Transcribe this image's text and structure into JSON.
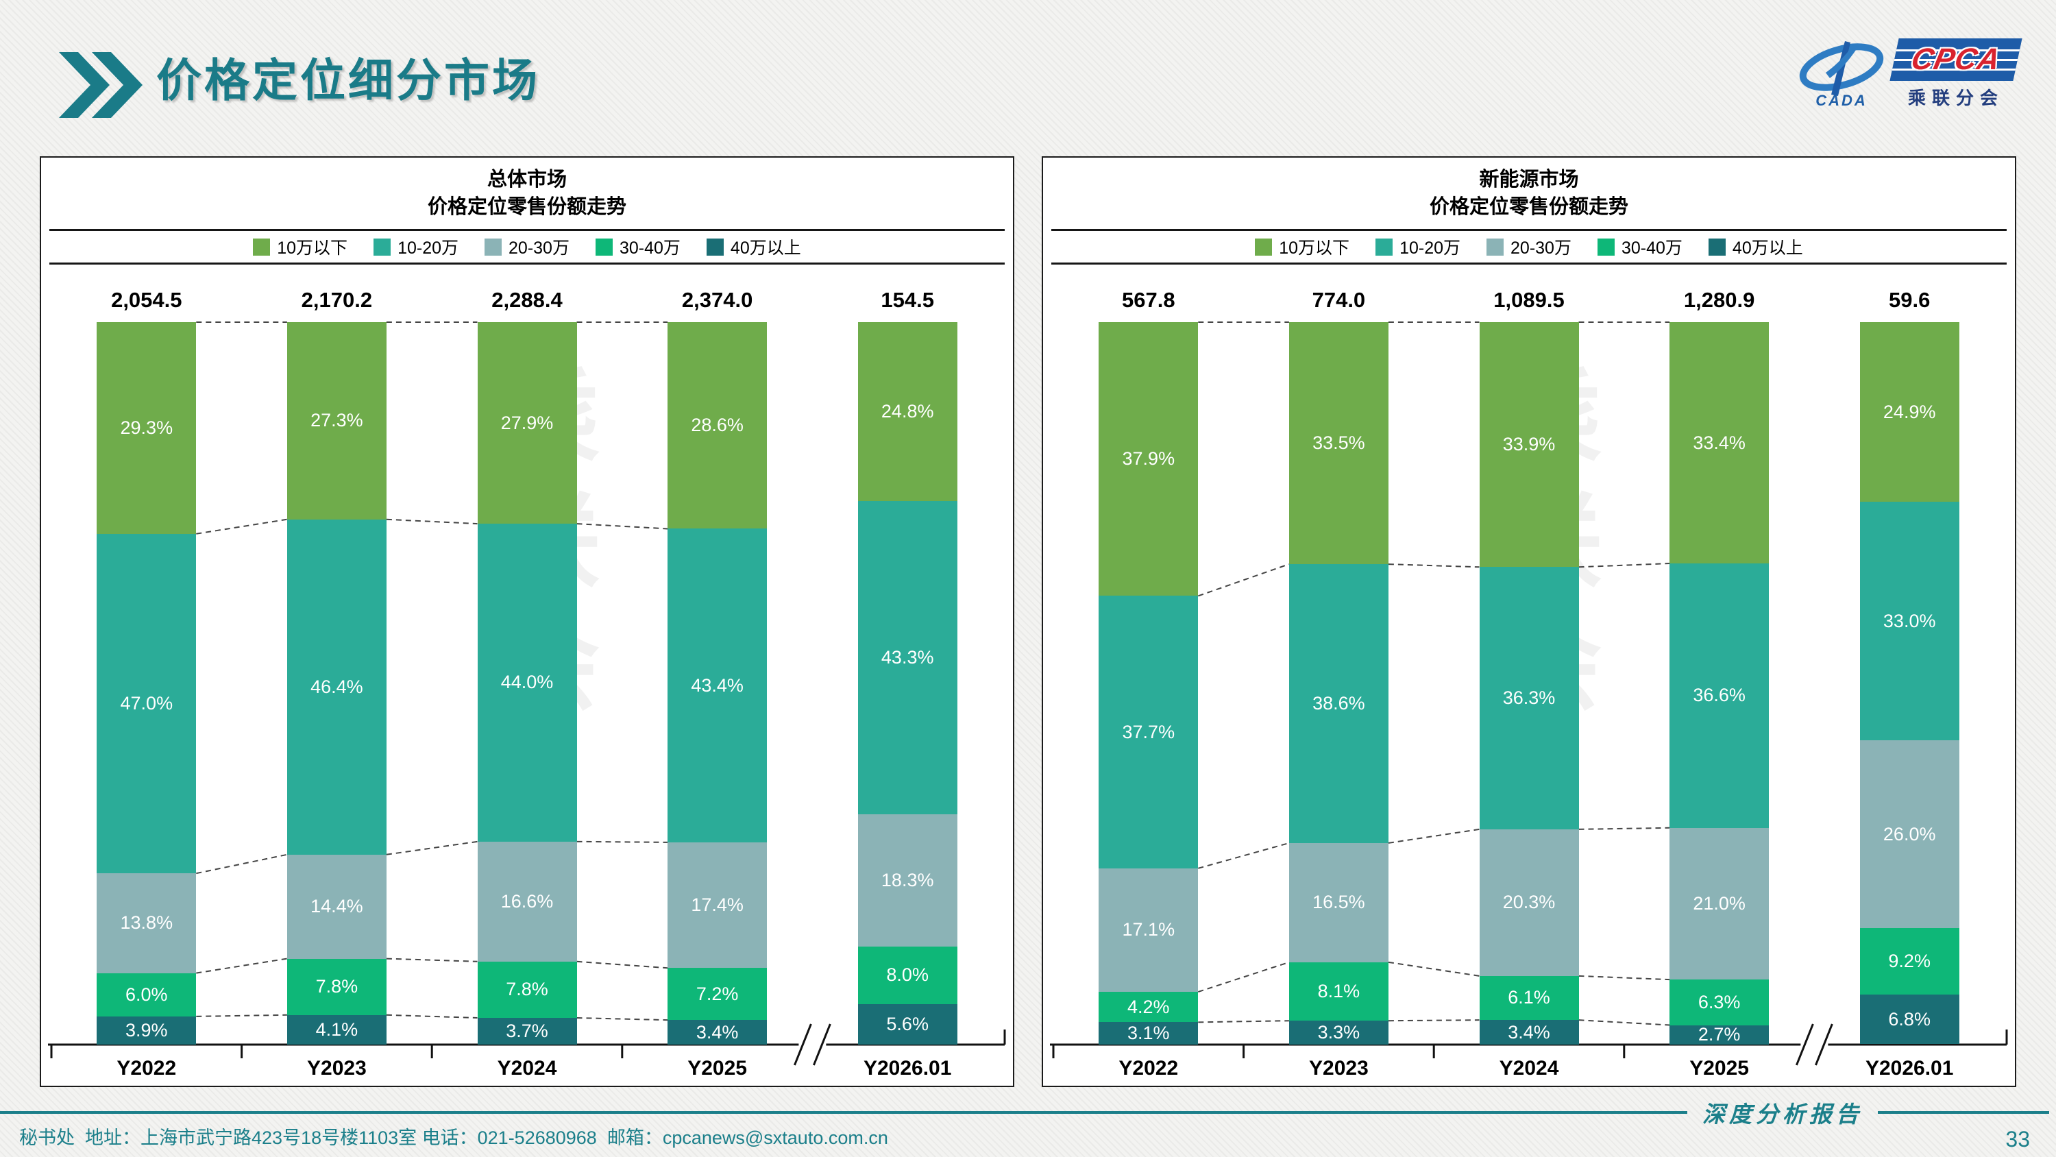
{
  "page": {
    "title": "价格定位细分市场",
    "watermark": "乘联会",
    "footer_left": "秘书处  地址：上海市武宁路423号18号楼1103室 电话：021-52680968  邮箱：cpcanews@sxtauto.com.cn",
    "footer_right": "深度分析报告",
    "page_number": "33"
  },
  "logo": {
    "cada": "CADA",
    "cpca": "CPCA",
    "sub": "乘联分会"
  },
  "legend": [
    {
      "label": "10万以下",
      "color": "#6FAC4B"
    },
    {
      "label": "10-20万",
      "color": "#2BAC98"
    },
    {
      "label": "20-30万",
      "color": "#8BB3B6"
    },
    {
      "label": "30-40万",
      "color": "#0EB778"
    },
    {
      "label": "40万以上",
      "color": "#1A6E75"
    }
  ],
  "chart_data": [
    {
      "type": "bar",
      "stacked": true,
      "title": "总体市场",
      "subtitle": "价格定位零售份额走势",
      "unit": "%",
      "categories": [
        "Y2022",
        "Y2023",
        "Y2024",
        "Y2025",
        "Y2026.01"
      ],
      "totals": [
        "2,054.5",
        "2,170.2",
        "2,288.4",
        "2,374.0",
        "154.5"
      ],
      "axis_break_after_index": 3,
      "series": [
        {
          "name": "40万以上",
          "color": "#1A6E75",
          "values": [
            3.9,
            4.1,
            3.7,
            3.4,
            5.6
          ]
        },
        {
          "name": "30-40万",
          "color": "#0EB778",
          "values": [
            6.0,
            7.8,
            7.8,
            7.2,
            8.0
          ]
        },
        {
          "name": "20-30万",
          "color": "#8BB3B6",
          "values": [
            13.8,
            14.4,
            16.6,
            17.4,
            18.3
          ]
        },
        {
          "name": "10-20万",
          "color": "#2BAC98",
          "values": [
            47.0,
            46.4,
            44.0,
            43.4,
            43.3
          ]
        },
        {
          "name": "10万以下",
          "color": "#6FAC4B",
          "values": [
            29.3,
            27.3,
            27.9,
            28.6,
            24.8
          ]
        }
      ]
    },
    {
      "type": "bar",
      "stacked": true,
      "title": "新能源市场",
      "subtitle": "价格定位零售份额走势",
      "unit": "%",
      "categories": [
        "Y2022",
        "Y2023",
        "Y2024",
        "Y2025",
        "Y2026.01"
      ],
      "totals": [
        "567.8",
        "774.0",
        "1,089.5",
        "1,280.9",
        "59.6"
      ],
      "axis_break_after_index": 3,
      "series": [
        {
          "name": "40万以上",
          "color": "#1A6E75",
          "values": [
            3.1,
            3.3,
            3.4,
            2.7,
            6.8
          ]
        },
        {
          "name": "30-40万",
          "color": "#0EB778",
          "values": [
            4.2,
            8.1,
            6.1,
            6.3,
            9.2
          ]
        },
        {
          "name": "20-30万",
          "color": "#8BB3B6",
          "values": [
            17.1,
            16.5,
            20.3,
            21.0,
            26.0
          ]
        },
        {
          "name": "10-20万",
          "color": "#2BAC98",
          "values": [
            37.7,
            38.6,
            36.3,
            36.6,
            33.0
          ]
        },
        {
          "name": "10万以下",
          "color": "#6FAC4B",
          "values": [
            37.9,
            33.5,
            33.9,
            33.4,
            24.9
          ]
        }
      ]
    }
  ]
}
